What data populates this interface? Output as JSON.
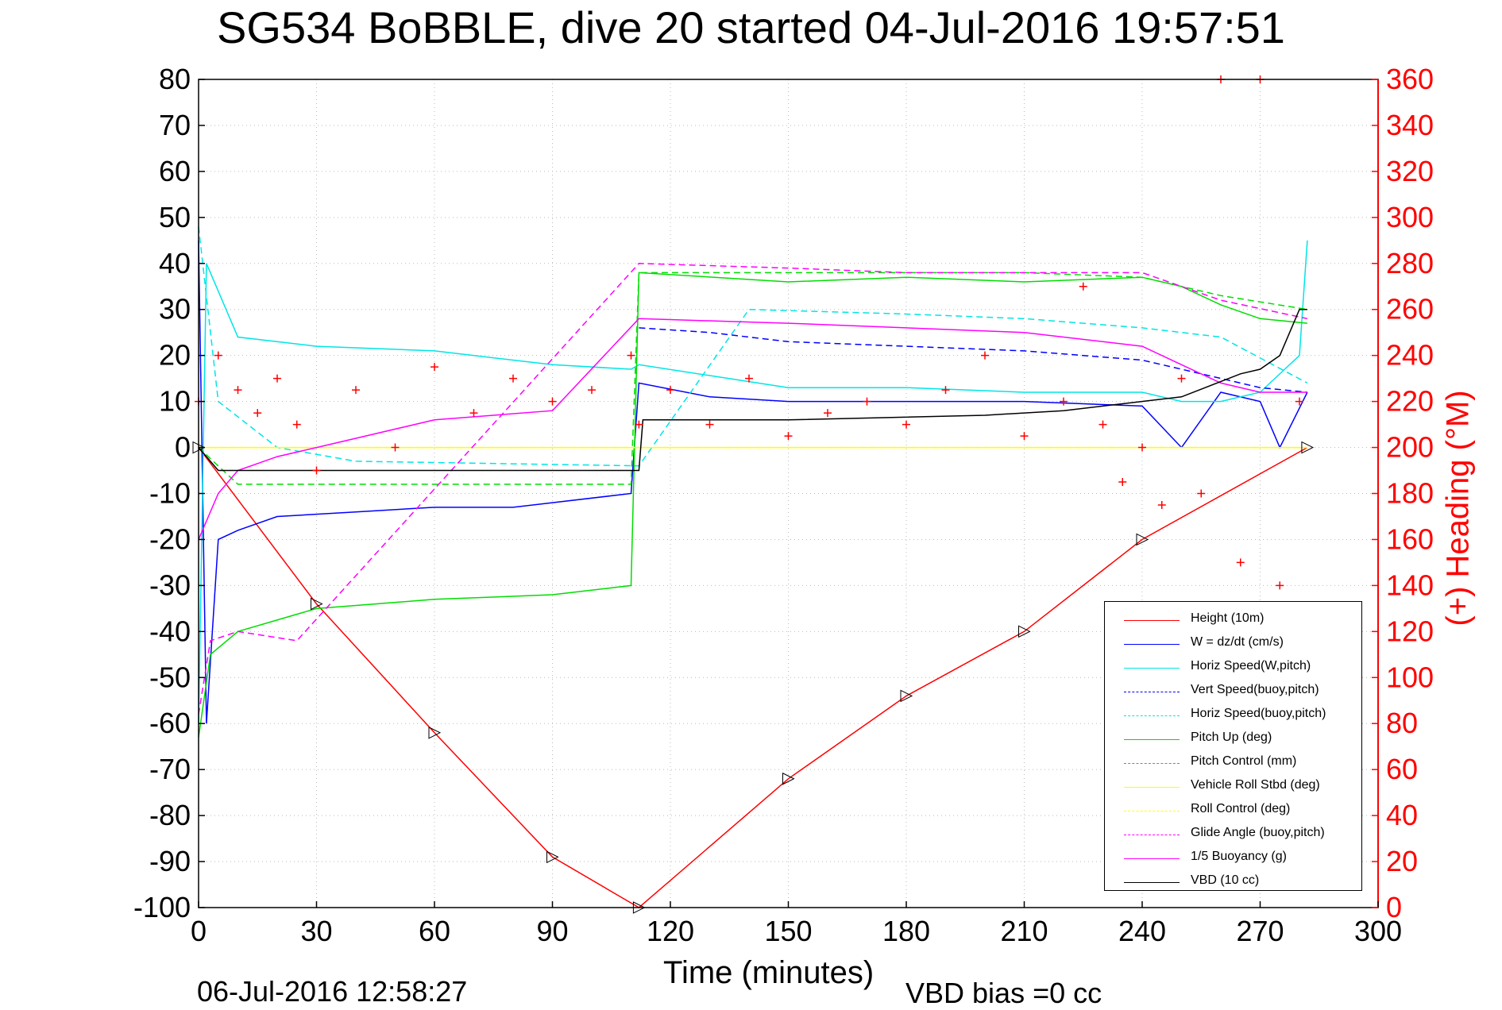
{
  "title": "SG534 BoBBLE, dive 20 started 04-Jul-2016 19:57:51",
  "timestamp": "06-Jul-2016 12:58:27",
  "vbd_bias": "VBD bias =0 cc",
  "chart_data": {
    "type": "line",
    "title": "SG534 BoBBLE, dive 20 started 04-Jul-2016 19:57:51",
    "xlabel": "Time (minutes)",
    "ylabel": "",
    "ylabel_right": "(+) Heading (°M)",
    "xlim": [
      0,
      300
    ],
    "ylim": [
      -100,
      80
    ],
    "ylim_right": [
      0,
      360
    ],
    "xticks": [
      "0",
      "30",
      "60",
      "90",
      "120",
      "150",
      "180",
      "210",
      "240",
      "270",
      "300"
    ],
    "yticks": [
      "80",
      "70",
      "60",
      "50",
      "40",
      "30",
      "20",
      "10",
      "0",
      "-10",
      "-20",
      "-30",
      "-40",
      "-50",
      "-60",
      "-70",
      "-80",
      "-90",
      "-100"
    ],
    "yticks_right": [
      "360",
      "340",
      "320",
      "300",
      "280",
      "260",
      "240",
      "220",
      "200",
      "180",
      "160",
      "140",
      "120",
      "100",
      "80",
      "60",
      "40",
      "20",
      "0"
    ],
    "grid": "dotted",
    "legend_position": "bottom-right",
    "series": [
      {
        "name": "Height (10m)",
        "color": "#ff0000",
        "style": "solid",
        "x": [
          0,
          30,
          60,
          90,
          112,
          150,
          180,
          210,
          240,
          282
        ],
        "y": [
          0,
          -34,
          -62,
          -89,
          -100,
          -72,
          -54,
          -40,
          -20,
          0
        ]
      },
      {
        "name": "W = dz/dt (cm/s)",
        "color": "#0000ff",
        "style": "solid",
        "x": [
          0,
          2,
          5,
          10,
          20,
          40,
          60,
          80,
          110,
          112,
          130,
          150,
          180,
          210,
          240,
          250,
          260,
          270,
          275,
          282
        ],
        "y": [
          45,
          -60,
          -20,
          -18,
          -15,
          -14,
          -13,
          -13,
          -10,
          14,
          11,
          10,
          10,
          10,
          9,
          0,
          12,
          10,
          0,
          12
        ]
      },
      {
        "name": "Horiz Speed(W,pitch)",
        "color": "#00e5e5",
        "style": "solid",
        "x": [
          0,
          2,
          10,
          30,
          60,
          90,
          110,
          112,
          150,
          180,
          210,
          240,
          250,
          260,
          270,
          280,
          282
        ],
        "y": [
          -60,
          40,
          24,
          22,
          21,
          18,
          17,
          18,
          13,
          13,
          12,
          12,
          10,
          10,
          12,
          20,
          45
        ]
      },
      {
        "name": "Vert Speed(buoy,pitch)",
        "color": "#0000ff",
        "style": "dashed",
        "x": [
          112,
          130,
          150,
          180,
          210,
          240,
          250,
          260,
          270,
          282
        ],
        "y": [
          26,
          25,
          23,
          22,
          21,
          19,
          17,
          15,
          13,
          12
        ]
      },
      {
        "name": "Horiz Speed(buoy,pitch)",
        "color": "#00e5e5",
        "style": "dashed",
        "x": [
          0,
          5,
          20,
          40,
          112,
          140,
          180,
          210,
          240,
          260,
          282
        ],
        "y": [
          48,
          10,
          0,
          -3,
          -4,
          30,
          29,
          28,
          26,
          24,
          14
        ]
      },
      {
        "name": "Pitch Up (deg)",
        "color": "#00dd00",
        "style": "solid",
        "x": [
          0,
          3,
          10,
          30,
          60,
          90,
          110,
          112,
          150,
          180,
          210,
          240,
          250,
          260,
          270,
          282
        ],
        "y": [
          -63,
          -45,
          -40,
          -35,
          -33,
          -32,
          -30,
          38,
          36,
          37,
          36,
          37,
          35,
          31,
          28,
          27
        ]
      },
      {
        "name": "Pitch Control (mm)",
        "color": "#00dd00",
        "style": "dashed",
        "x": [
          0,
          10,
          30,
          60,
          110,
          112,
          150,
          180,
          210,
          240,
          260,
          282
        ],
        "y": [
          0,
          -8,
          -8,
          -8,
          -8,
          38,
          38,
          38,
          38,
          37,
          33,
          30
        ]
      },
      {
        "name": "Vehicle Roll Stbd (deg)",
        "color": "#ffff00",
        "style": "solid",
        "x": [
          0,
          10,
          50,
          90,
          112,
          150,
          200,
          230,
          250,
          270,
          282
        ],
        "y": [
          0,
          0,
          0,
          0,
          0,
          0,
          0,
          0,
          0,
          0,
          0
        ]
      },
      {
        "name": "Roll Control (deg)",
        "color": "#ffff00",
        "style": "dashed",
        "x": [
          0,
          10,
          50,
          90,
          112,
          150,
          200,
          230,
          250,
          270,
          282
        ],
        "y": [
          0,
          0,
          0,
          0,
          0,
          0,
          0,
          0,
          0,
          0,
          0
        ]
      },
      {
        "name": "Glide Angle (buoy,pitch)",
        "color": "#ff00ff",
        "style": "dashed",
        "x": [
          0,
          3,
          10,
          25,
          112,
          150,
          180,
          210,
          240,
          260,
          282
        ],
        "y": [
          -58,
          -42,
          -40,
          -42,
          40,
          39,
          38,
          38,
          38,
          32,
          28
        ]
      },
      {
        "name": "1/5 Buoyancy (g)",
        "color": "#ff00ff",
        "style": "solid",
        "x": [
          0,
          5,
          10,
          20,
          30,
          60,
          90,
          112,
          150,
          180,
          210,
          240,
          250,
          260,
          270,
          282
        ],
        "y": [
          -20,
          -10,
          -5,
          -2,
          0,
          6,
          8,
          28,
          27,
          26,
          25,
          22,
          18,
          14,
          12,
          12
        ]
      },
      {
        "name": "VBD (10 cc)",
        "color": "#000000",
        "style": "solid",
        "x": [
          0,
          5,
          112,
          113,
          150,
          200,
          220,
          250,
          265,
          270,
          275,
          280,
          282
        ],
        "y": [
          0,
          -5,
          -5,
          6,
          6,
          7,
          8,
          11,
          16,
          17,
          20,
          30,
          30
        ]
      },
      {
        "name": "Heading (°M)",
        "color": "#ff0000",
        "style": "markers",
        "axis": "right",
        "x": [
          0,
          5,
          10,
          15,
          20,
          25,
          30,
          40,
          50,
          60,
          70,
          80,
          90,
          100,
          110,
          112,
          120,
          130,
          140,
          150,
          160,
          170,
          180,
          190,
          200,
          210,
          220,
          225,
          230,
          235,
          240,
          245,
          250,
          255,
          260,
          265,
          270,
          275,
          280
        ],
        "y": [
          220,
          240,
          225,
          215,
          230,
          210,
          190,
          225,
          200,
          235,
          215,
          230,
          220,
          225,
          240,
          210,
          225,
          210,
          230,
          205,
          215,
          220,
          210,
          225,
          240,
          205,
          220,
          270,
          210,
          185,
          200,
          175,
          230,
          180,
          360,
          150,
          360,
          140,
          220
        ]
      }
    ]
  }
}
